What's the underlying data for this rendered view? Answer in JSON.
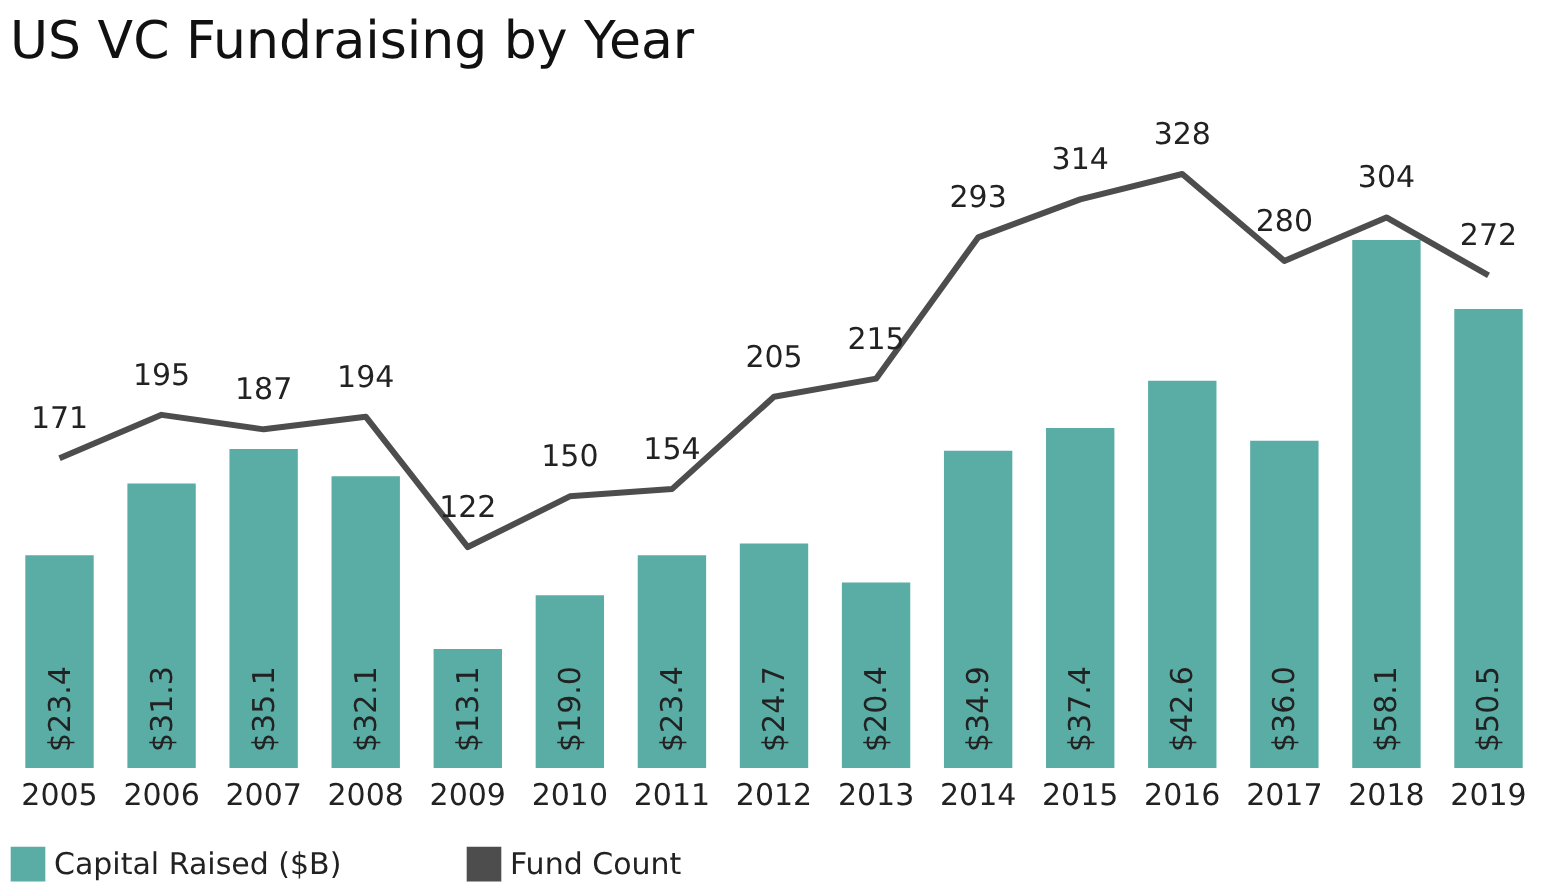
{
  "chart_data": {
    "type": "bar",
    "title": "US VC Fundraising by Year",
    "categories": [
      "2005",
      "2006",
      "2007",
      "2008",
      "2009",
      "2010",
      "2011",
      "2012",
      "2013",
      "2014",
      "2015",
      "2016",
      "2017",
      "2018",
      "2019"
    ],
    "series": [
      {
        "name": "Capital Raised ($B)",
        "color": "#5aada5",
        "values": [
          23.4,
          31.3,
          35.1,
          32.1,
          13.1,
          19.0,
          23.4,
          24.7,
          20.4,
          34.9,
          37.4,
          42.6,
          36.0,
          58.1,
          50.5
        ],
        "value_labels": [
          "$23.4",
          "$31.3",
          "$35.1",
          "$32.1",
          "$13.1",
          "$19.0",
          "$23.4",
          "$24.7",
          "$20.4",
          "$34.9",
          "$37.4",
          "$42.6",
          "$36.0",
          "$58.1",
          "$50.5"
        ]
      },
      {
        "name": "Fund Count",
        "type": "line",
        "axis": "y2",
        "color": "#4d4d4d",
        "values": [
          171,
          195,
          187,
          194,
          122,
          150,
          154,
          205,
          215,
          293,
          314,
          328,
          280,
          304,
          272
        ],
        "value_labels": [
          "171",
          "195",
          "187",
          "194",
          "122",
          "150",
          "154",
          "205",
          "215",
          "293",
          "314",
          "328",
          "280",
          "304",
          "272"
        ]
      }
    ],
    "tick_labels": "x",
    "legend": "bottom",
    "marker": "none",
    "line_style": "solid"
  }
}
